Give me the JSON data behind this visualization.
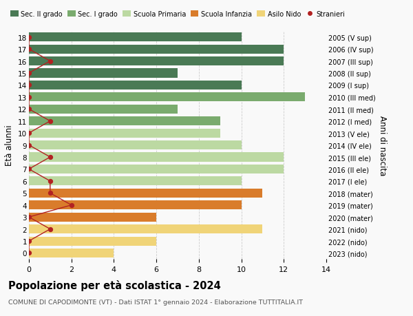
{
  "ages": [
    18,
    17,
    16,
    15,
    14,
    13,
    12,
    11,
    10,
    9,
    8,
    7,
    6,
    5,
    4,
    3,
    2,
    1,
    0
  ],
  "right_labels": [
    "2005 (V sup)",
    "2006 (IV sup)",
    "2007 (III sup)",
    "2008 (II sup)",
    "2009 (I sup)",
    "2010 (III med)",
    "2011 (II med)",
    "2012 (I med)",
    "2013 (V ele)",
    "2014 (IV ele)",
    "2015 (III ele)",
    "2016 (II ele)",
    "2017 (I ele)",
    "2018 (mater)",
    "2019 (mater)",
    "2020 (mater)",
    "2021 (nido)",
    "2022 (nido)",
    "2023 (nido)"
  ],
  "bar_values": [
    10,
    12,
    12,
    7,
    10,
    13,
    7,
    9,
    9,
    10,
    12,
    12,
    10,
    11,
    10,
    6,
    11,
    6,
    4
  ],
  "bar_colors": [
    "#4a7a55",
    "#4a7a55",
    "#4a7a55",
    "#4a7a55",
    "#4a7a55",
    "#7aab6e",
    "#7aab6e",
    "#7aab6e",
    "#bcd9a2",
    "#bcd9a2",
    "#bcd9a2",
    "#bcd9a2",
    "#bcd9a2",
    "#d97c2b",
    "#d97c2b",
    "#d97c2b",
    "#f0d478",
    "#f0d478",
    "#f0d478"
  ],
  "stranieri_values": [
    0,
    0,
    1,
    0,
    0,
    0,
    0,
    1,
    0,
    0,
    1,
    0,
    1,
    1,
    2,
    0,
    1,
    0,
    0
  ],
  "legend_labels": [
    "Sec. II grado",
    "Sec. I grado",
    "Scuola Primaria",
    "Scuola Infanzia",
    "Asilo Nido",
    "Stranieri"
  ],
  "legend_colors": [
    "#4a7a55",
    "#7aab6e",
    "#bcd9a2",
    "#d97c2b",
    "#f0d478",
    "#b22222"
  ],
  "stranieri_color": "#b22222",
  "ylabel_left": "Età alunni",
  "ylabel_right": "Anni di nascita",
  "title": "Popolazione per età scolastica - 2024",
  "subtitle": "COMUNE DI CAPODIMONTE (VT) - Dati ISTAT 1° gennaio 2024 - Elaborazione TUTTITALIA.IT",
  "xlim": [
    0,
    14
  ],
  "background_color": "#f9f9f9",
  "grid_color": "#cccccc"
}
